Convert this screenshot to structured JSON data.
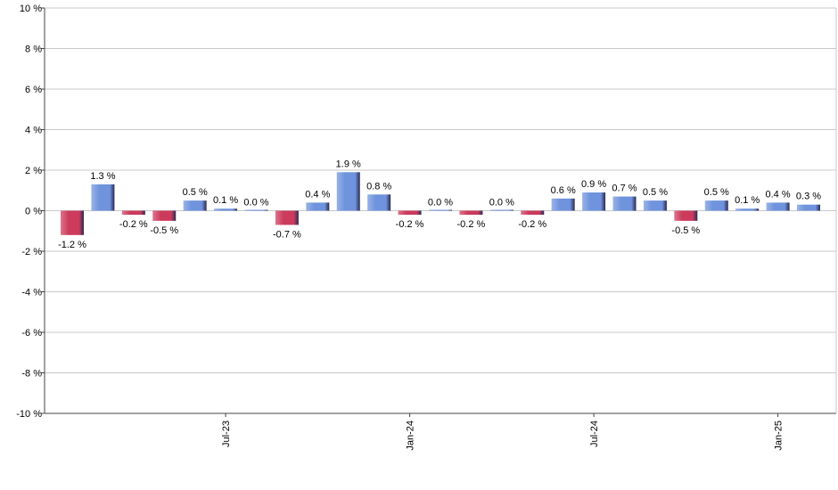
{
  "chart_data": {
    "type": "bar",
    "categories": [
      null,
      null,
      null,
      null,
      null,
      "Jul-23",
      null,
      null,
      null,
      null,
      null,
      "Jan-24",
      null,
      null,
      null,
      null,
      null,
      "Jul-24",
      null,
      null,
      null,
      null,
      null,
      "Jan-25",
      null
    ],
    "values": [
      -1.2,
      1.3,
      -0.2,
      -0.5,
      0.5,
      0.1,
      0.0,
      -0.7,
      0.4,
      1.9,
      0.8,
      -0.2,
      0.0,
      -0.2,
      0.0,
      -0.2,
      0.6,
      0.9,
      0.7,
      0.5,
      -0.5,
      0.5,
      0.1,
      0.4,
      0.3
    ],
    "value_labels": [
      "-1.2 %",
      "1.3 %",
      "-0.2 %",
      "-0.5 %",
      "0.5 %",
      "0.1 %",
      "0.0 %",
      "-0.7 %",
      "0.4 %",
      "1.9 %",
      "0.8 %",
      "-0.2 %",
      "0.0 %",
      "-0.2 %",
      "0.0 %",
      "-0.2 %",
      "0.6 %",
      "0.9 %",
      "0.7 %",
      "0.5 %",
      "-0.5 %",
      "0.5 %",
      "0.1 %",
      "0.4 %",
      "0.3 %"
    ],
    "positive_color": "#6f93dc",
    "negative_color": "#cc3a5c",
    "ylim": [
      -10,
      10
    ],
    "yticks": [
      {
        "value": -10,
        "label": "-10 %"
      },
      {
        "value": -8,
        "label": "-8 %"
      },
      {
        "value": -6,
        "label": "-6 %"
      },
      {
        "value": -4,
        "label": "-4 %"
      },
      {
        "value": -2,
        "label": "-2 %"
      },
      {
        "value": 0,
        "label": "0 %"
      },
      {
        "value": 2,
        "label": "2 %"
      },
      {
        "value": 4,
        "label": "4 %"
      },
      {
        "value": 6,
        "label": "6 %"
      },
      {
        "value": 8,
        "label": "8 %"
      },
      {
        "value": 10,
        "label": "10 %"
      }
    ],
    "grid": true
  }
}
